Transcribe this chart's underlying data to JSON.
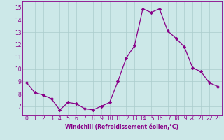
{
  "data_points": [
    [
      0,
      8.9
    ],
    [
      1,
      8.1
    ],
    [
      2,
      7.9
    ],
    [
      3,
      7.6
    ],
    [
      4,
      6.7
    ],
    [
      5,
      7.3
    ],
    [
      6,
      7.2
    ],
    [
      7,
      6.8
    ],
    [
      8,
      6.7
    ],
    [
      9,
      7.0
    ],
    [
      10,
      7.3
    ],
    [
      11,
      9.0
    ],
    [
      12,
      10.9
    ],
    [
      13,
      11.9
    ],
    [
      14,
      14.9
    ],
    [
      15,
      14.6
    ],
    [
      16,
      14.9
    ],
    [
      17,
      13.1
    ],
    [
      18,
      12.5
    ],
    [
      19,
      11.8
    ],
    [
      20,
      10.1
    ],
    [
      21,
      9.8
    ],
    [
      22,
      8.9
    ],
    [
      23,
      8.6
    ]
  ],
  "line_color": "#880088",
  "bg_color": "#cce8e8",
  "grid_color": "#aacccc",
  "xlabel": "Windchill (Refroidissement éolien,°C)",
  "ylim": [
    6.3,
    15.5
  ],
  "xlim": [
    -0.5,
    23.5
  ],
  "yticks": [
    7,
    8,
    9,
    10,
    11,
    12,
    13,
    14,
    15
  ],
  "xticks": [
    0,
    1,
    2,
    3,
    4,
    5,
    6,
    7,
    8,
    9,
    10,
    11,
    12,
    13,
    14,
    15,
    16,
    17,
    18,
    19,
    20,
    21,
    22,
    23
  ],
  "tick_fontsize": 5.5,
  "xlabel_fontsize": 5.5,
  "marker_size": 2.2,
  "linewidth": 0.9
}
